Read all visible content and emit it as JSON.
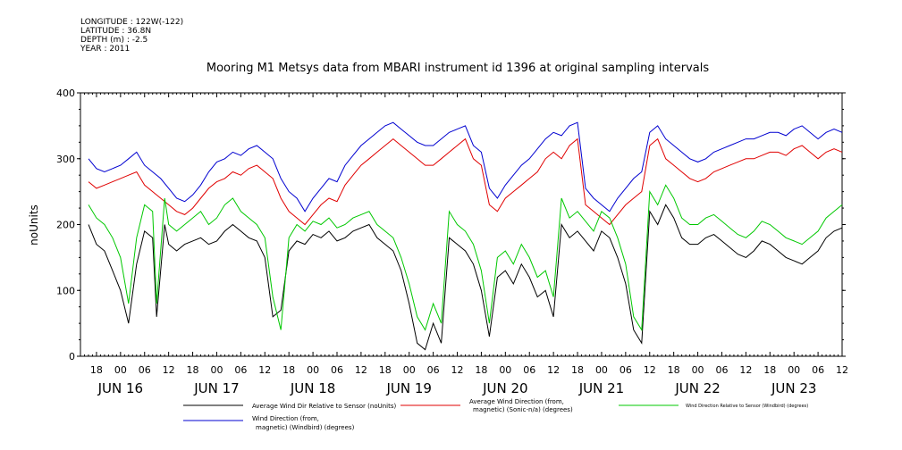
{
  "header": {
    "lines": [
      "LONGITUDE : 122W(-122)",
      "LATITUDE : 36.8N",
      "DEPTH (m) : -2.5",
      "YEAR : 2011"
    ]
  },
  "chart_data": {
    "type": "line",
    "title": "Mooring M1 Metsys data from MBARI instrument id 1396 at original sampling intervals",
    "ylabel": "noUnits",
    "xlabel": "",
    "ylim": [
      0,
      400
    ],
    "yticks": [
      0,
      100,
      200,
      300,
      400
    ],
    "xlim_hours": [
      14,
      204
    ],
    "x_hour_ticks": [
      "18",
      "00",
      "06",
      "12",
      "18",
      "00",
      "06",
      "12",
      "18",
      "00",
      "06",
      "12",
      "18",
      "00",
      "06",
      "12",
      "18",
      "00",
      "06",
      "12",
      "18",
      "00",
      "06",
      "12",
      "18",
      "00",
      "06",
      "12",
      "18",
      "00",
      "06",
      "12"
    ],
    "x_date_ticks": [
      "JUN 16",
      "JUN 17",
      "JUN 18",
      "JUN 19",
      "JUN 20",
      "JUN 21",
      "JUN 22",
      "JUN 23"
    ],
    "grid": false,
    "legend_position": "bottom",
    "series": [
      {
        "name": "Average Wind Dir Relative to Sensor (noUnits)",
        "color": "#000000",
        "x_hours": [
          16,
          18,
          20,
          22,
          24,
          26,
          28,
          30,
          32,
          33,
          35,
          36,
          38,
          40,
          42,
          44,
          46,
          48,
          50,
          52,
          54,
          56,
          58,
          60,
          62,
          64,
          66,
          68,
          70,
          72,
          74,
          76,
          78,
          80,
          82,
          84,
          86,
          88,
          90,
          92,
          94,
          96,
          98,
          100,
          102,
          104,
          106,
          108,
          110,
          112,
          114,
          116,
          118,
          120,
          122,
          124,
          126,
          128,
          130,
          132,
          134,
          136,
          138,
          140,
          142,
          144,
          146,
          148,
          150,
          152,
          154,
          156,
          158,
          160,
          162,
          164,
          166,
          168,
          170,
          172,
          174,
          176,
          178,
          180,
          182,
          184,
          186,
          188,
          190,
          192,
          194,
          196,
          198,
          200,
          202,
          204
        ],
        "values": [
          200,
          170,
          160,
          130,
          100,
          50,
          140,
          190,
          180,
          60,
          200,
          170,
          160,
          170,
          175,
          180,
          170,
          175,
          190,
          200,
          190,
          180,
          175,
          150,
          60,
          70,
          160,
          175,
          170,
          185,
          180,
          190,
          175,
          180,
          190,
          195,
          200,
          180,
          170,
          160,
          130,
          80,
          20,
          10,
          50,
          20,
          180,
          170,
          160,
          140,
          100,
          30,
          120,
          130,
          110,
          140,
          120,
          90,
          100,
          60,
          200,
          180,
          190,
          175,
          160,
          190,
          180,
          150,
          110,
          40,
          20,
          220,
          200,
          230,
          210,
          180,
          170,
          170,
          180,
          185,
          175,
          165,
          155,
          150,
          160,
          175,
          170,
          160,
          150,
          145,
          140,
          150,
          160,
          180,
          190,
          195
        ]
      },
      {
        "name": "Average Wind Direction (from, magnetic) (Sonic-n/a) (degrees)",
        "color": "#e00000",
        "x_hours": [
          16,
          18,
          20,
          22,
          24,
          26,
          28,
          30,
          32,
          34,
          36,
          38,
          40,
          42,
          44,
          46,
          48,
          50,
          52,
          54,
          56,
          58,
          60,
          62,
          64,
          66,
          68,
          70,
          72,
          74,
          76,
          78,
          80,
          82,
          84,
          86,
          88,
          90,
          92,
          94,
          96,
          98,
          100,
          102,
          104,
          106,
          108,
          110,
          112,
          114,
          116,
          118,
          120,
          122,
          124,
          126,
          128,
          130,
          132,
          134,
          136,
          138,
          140,
          142,
          144,
          146,
          148,
          150,
          152,
          154,
          156,
          158,
          160,
          162,
          164,
          166,
          168,
          170,
          172,
          174,
          176,
          178,
          180,
          182,
          184,
          186,
          188,
          190,
          192,
          194,
          196,
          198,
          200,
          202,
          204
        ],
        "values": [
          265,
          255,
          260,
          265,
          270,
          275,
          280,
          260,
          250,
          240,
          230,
          220,
          215,
          225,
          240,
          255,
          265,
          270,
          280,
          275,
          285,
          290,
          280,
          270,
          240,
          220,
          210,
          200,
          215,
          230,
          240,
          235,
          260,
          275,
          290,
          300,
          310,
          320,
          330,
          320,
          310,
          300,
          290,
          290,
          300,
          310,
          320,
          330,
          300,
          290,
          230,
          220,
          240,
          250,
          260,
          270,
          280,
          300,
          310,
          300,
          320,
          330,
          230,
          220,
          210,
          200,
          215,
          230,
          240,
          250,
          320,
          330,
          300,
          290,
          280,
          270,
          265,
          270,
          280,
          285,
          290,
          295,
          300,
          300,
          305,
          310,
          310,
          305,
          315,
          320,
          310,
          300,
          310,
          315,
          310
        ]
      },
      {
        "name": "Wind Direction Relative to Sensor (Windbird) (degrees)",
        "color": "#00c800",
        "x_hours": [
          16,
          18,
          20,
          22,
          24,
          26,
          28,
          30,
          32,
          33,
          35,
          36,
          38,
          40,
          42,
          44,
          46,
          48,
          50,
          52,
          54,
          56,
          58,
          60,
          62,
          64,
          66,
          68,
          70,
          72,
          74,
          76,
          78,
          80,
          82,
          84,
          86,
          88,
          90,
          92,
          94,
          96,
          98,
          100,
          102,
          104,
          106,
          108,
          110,
          112,
          114,
          116,
          118,
          120,
          122,
          124,
          126,
          128,
          130,
          132,
          134,
          136,
          138,
          140,
          142,
          144,
          146,
          148,
          150,
          152,
          154,
          156,
          158,
          160,
          162,
          164,
          166,
          168,
          170,
          172,
          174,
          176,
          178,
          180,
          182,
          184,
          186,
          188,
          190,
          192,
          194,
          196,
          198,
          200,
          202,
          204
        ],
        "values": [
          230,
          210,
          200,
          180,
          150,
          80,
          180,
          230,
          220,
          80,
          240,
          200,
          190,
          200,
          210,
          220,
          200,
          210,
          230,
          240,
          220,
          210,
          200,
          180,
          90,
          40,
          180,
          200,
          190,
          205,
          200,
          210,
          195,
          200,
          210,
          215,
          220,
          200,
          190,
          180,
          150,
          110,
          60,
          40,
          80,
          50,
          220,
          200,
          190,
          170,
          130,
          50,
          150,
          160,
          140,
          170,
          150,
          120,
          130,
          90,
          240,
          210,
          220,
          205,
          190,
          220,
          210,
          180,
          140,
          60,
          40,
          250,
          230,
          260,
          240,
          210,
          200,
          200,
          210,
          215,
          205,
          195,
          185,
          180,
          190,
          205,
          200,
          190,
          180,
          175,
          170,
          180,
          190,
          210,
          220,
          230
        ]
      },
      {
        "name": "Wind Direction (from, magnetic) (Windbird) (degrees)",
        "color": "#0000d0",
        "x_hours": [
          16,
          18,
          20,
          22,
          24,
          26,
          28,
          30,
          32,
          34,
          36,
          38,
          40,
          42,
          44,
          46,
          48,
          50,
          52,
          54,
          56,
          58,
          60,
          62,
          64,
          66,
          68,
          70,
          72,
          74,
          76,
          78,
          80,
          82,
          84,
          86,
          88,
          90,
          92,
          94,
          96,
          98,
          100,
          102,
          104,
          106,
          108,
          110,
          112,
          114,
          116,
          118,
          120,
          122,
          124,
          126,
          128,
          130,
          132,
          134,
          136,
          138,
          140,
          142,
          144,
          146,
          148,
          150,
          152,
          154,
          156,
          158,
          160,
          162,
          164,
          166,
          168,
          170,
          172,
          174,
          176,
          178,
          180,
          182,
          184,
          186,
          188,
          190,
          192,
          194,
          196,
          198,
          200,
          202,
          204
        ],
        "values": [
          300,
          285,
          280,
          285,
          290,
          300,
          310,
          290,
          280,
          270,
          255,
          240,
          235,
          245,
          260,
          280,
          295,
          300,
          310,
          305,
          315,
          320,
          310,
          300,
          270,
          250,
          240,
          220,
          240,
          255,
          270,
          265,
          290,
          305,
          320,
          330,
          340,
          350,
          355,
          345,
          335,
          325,
          320,
          320,
          330,
          340,
          345,
          350,
          320,
          310,
          255,
          240,
          260,
          275,
          290,
          300,
          315,
          330,
          340,
          335,
          350,
          355,
          255,
          240,
          230,
          220,
          240,
          255,
          270,
          280,
          340,
          350,
          330,
          320,
          310,
          300,
          295,
          300,
          310,
          315,
          320,
          325,
          330,
          330,
          335,
          340,
          340,
          335,
          345,
          350,
          340,
          330,
          340,
          345,
          340
        ]
      }
    ]
  },
  "legend": {
    "black_line1": "Average Wind Dir Relative to Sensor (noUnits)",
    "red_line1": "Average Wind Direction (from,",
    "red_line2": "magnetic) (Sonic-n/a) (degrees)",
    "green_line1": "Wind Direction Relative to Sensor (Windbird) (degrees)",
    "blue_line1": "Wind Direction (from,",
    "blue_line2": "magnetic) (Windbird) (degrees)"
  }
}
